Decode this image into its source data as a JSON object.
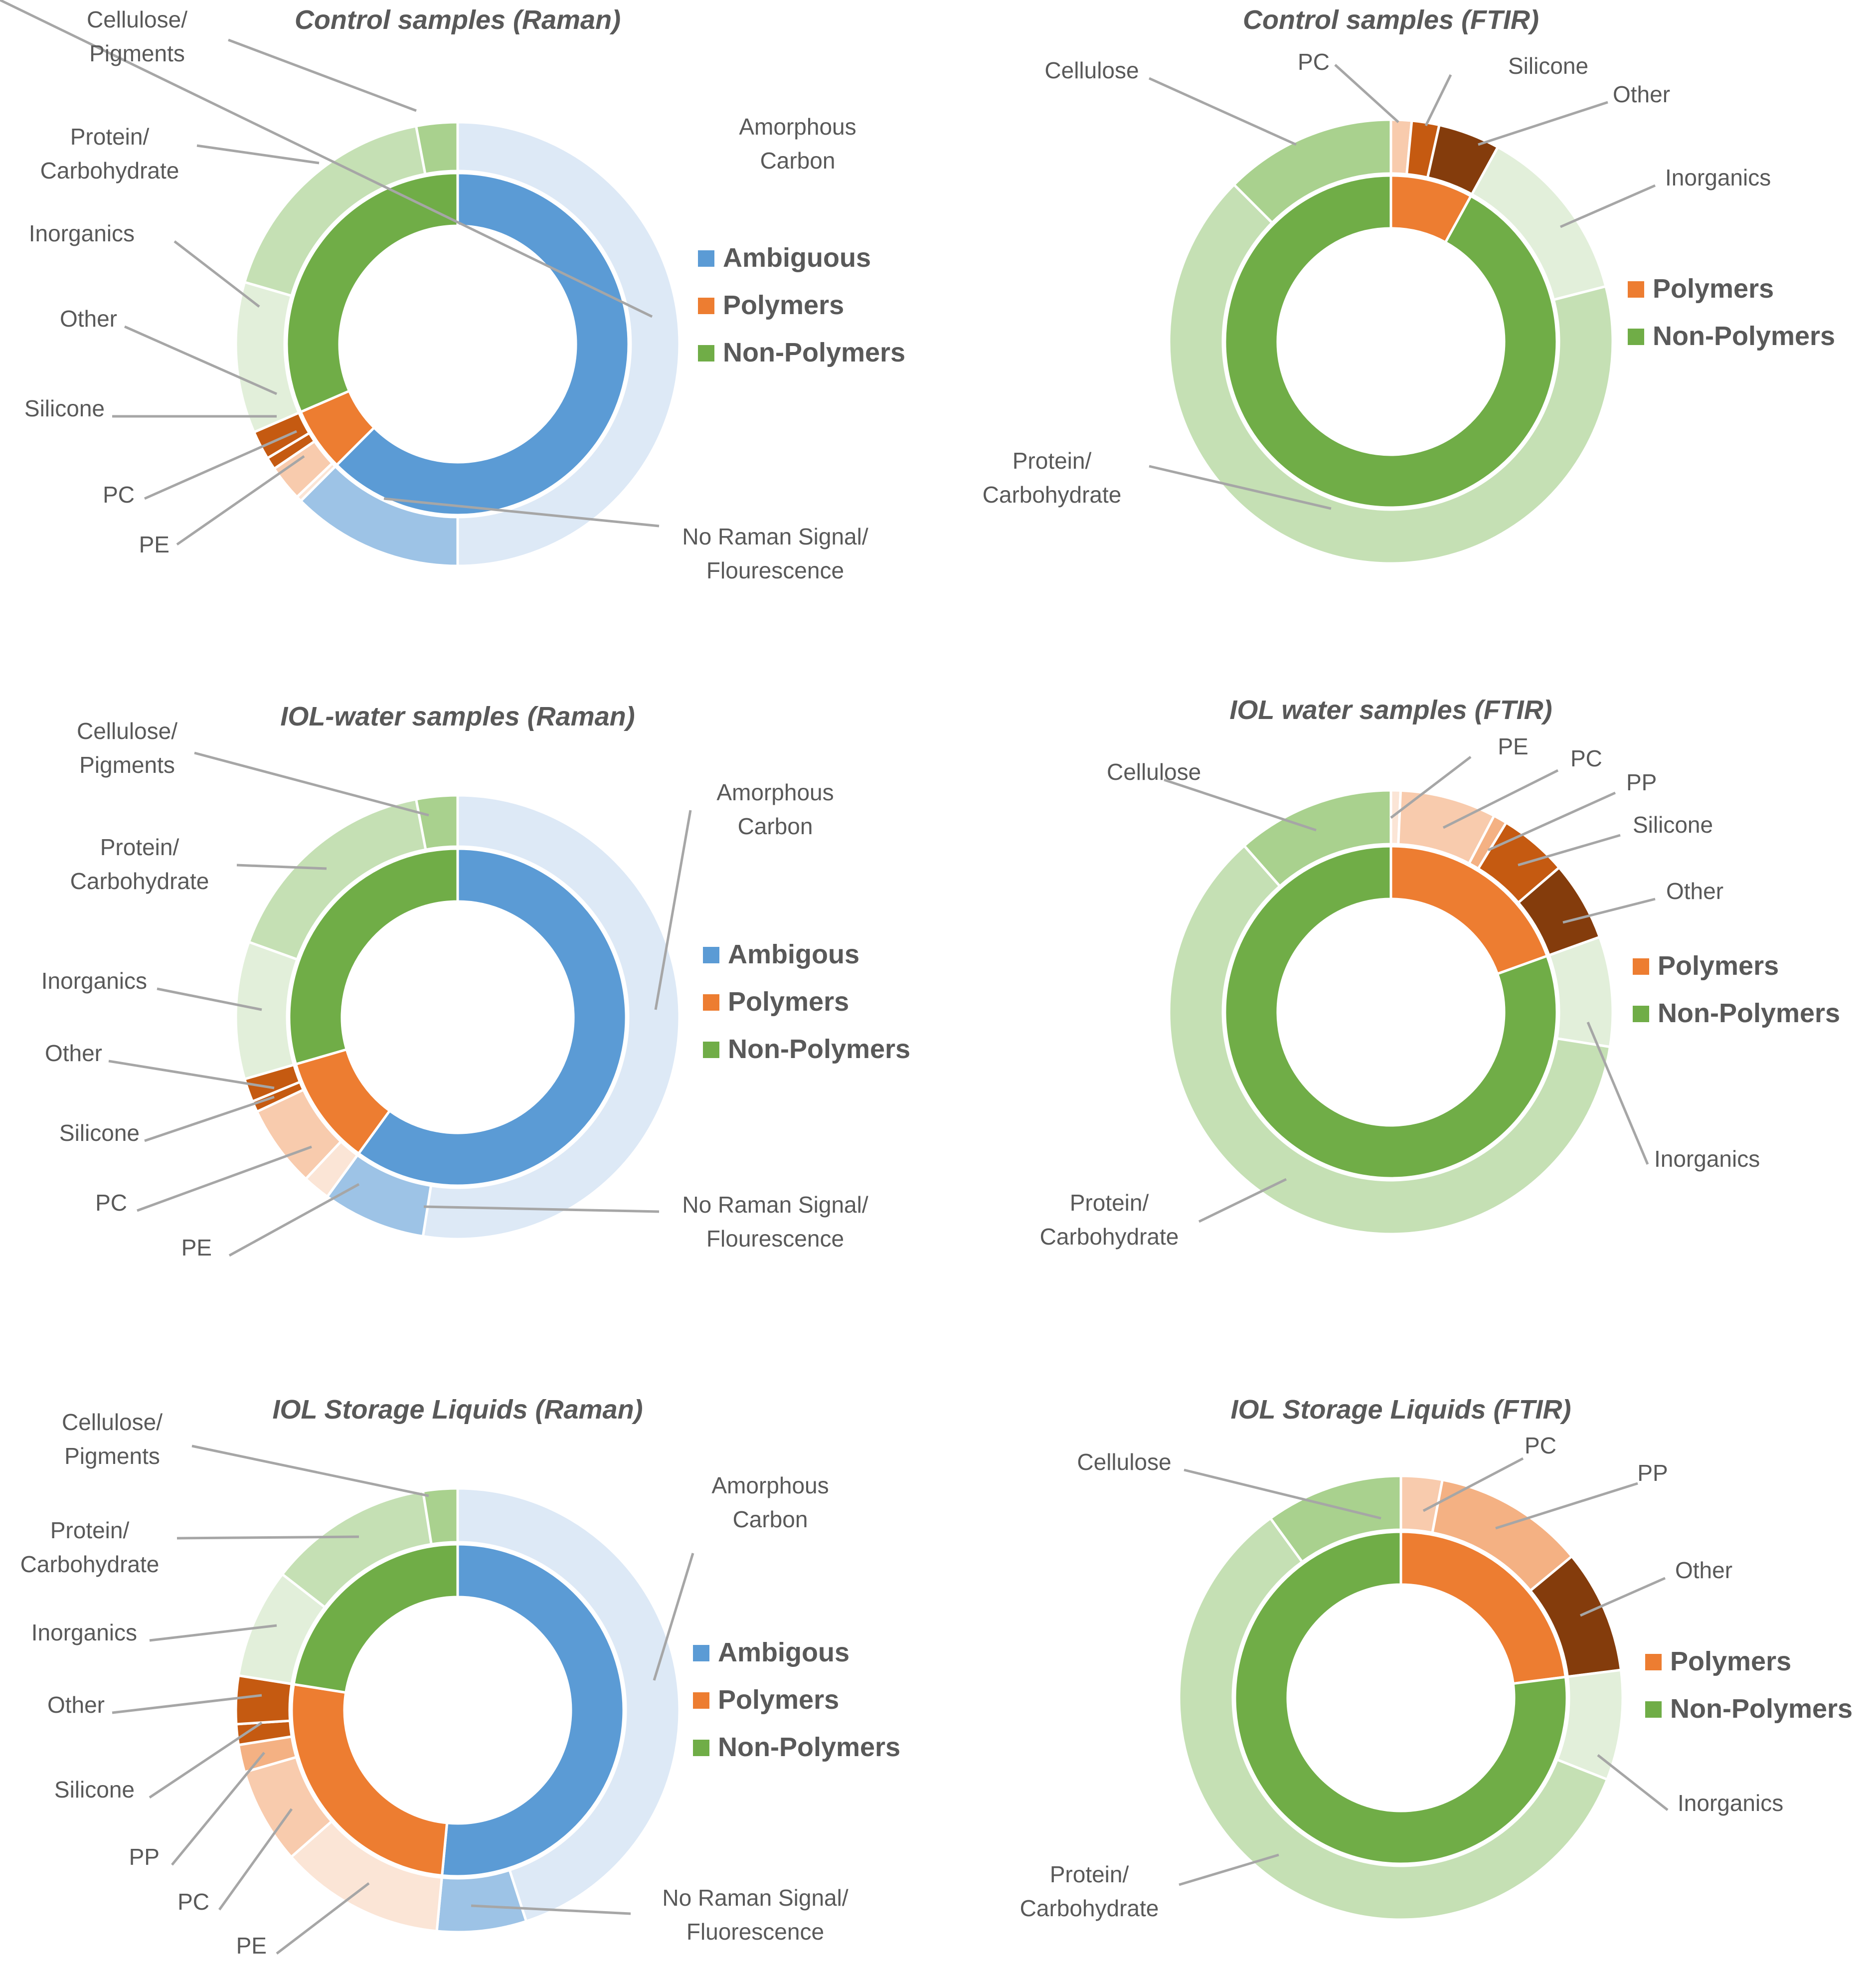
{
  "palette": {
    "ambiguous": "#5b9bd5",
    "polymers": "#ed7d31",
    "non_polymers": "#70ad47",
    "label_text": "#595959",
    "leader_line": "#a6a6a6"
  },
  "chart_data": [
    {
      "type": "donut",
      "title": "Control samples (Raman)",
      "legend": [
        "Ambiguous",
        "Polymers",
        "Non-Polymers"
      ],
      "inner": [
        {
          "name": "Ambiguous",
          "value": 62.5,
          "color": "#5b9bd5"
        },
        {
          "name": "Polymers",
          "value": 6.0,
          "color": "#ed7d31"
        },
        {
          "name": "Non-Polymers",
          "value": 31.5,
          "color": "#70ad47"
        }
      ],
      "outer": [
        {
          "name": "Amorphous Carbon",
          "label": [
            "Amorphous",
            "Carbon"
          ],
          "value": 50.0,
          "color": "#dde9f6"
        },
        {
          "name": "No Raman Signal/ Flourescence",
          "label": [
            "No Raman Signal/",
            "Flourescence"
          ],
          "value": 12.5,
          "color": "#9dc3e6"
        },
        {
          "name": "PE",
          "label": [
            "PE"
          ],
          "value": 0.4,
          "color": "#fbe5d6"
        },
        {
          "name": "PC",
          "label": [
            "PC"
          ],
          "value": 2.6,
          "color": "#f8cbad"
        },
        {
          "name": "Silicone",
          "label": [
            "Silicone"
          ],
          "value": 0.9,
          "color": "#c55a11"
        },
        {
          "name": "Other",
          "label": [
            "Other"
          ],
          "value": 2.1,
          "color": "#c55a11"
        },
        {
          "name": "Inorganics",
          "label": [
            "Inorganics"
          ],
          "value": 11.0,
          "color": "#e2efda"
        },
        {
          "name": "Protein/ Carbohydrate",
          "label": [
            "Protein/",
            "Carbohydrate"
          ],
          "value": 17.5,
          "color": "#c5e0b4"
        },
        {
          "name": "Cellulose/ Pigments",
          "label": [
            "Cellulose/",
            "Pigments"
          ],
          "value": 3.0,
          "color": "#a9d18e"
        }
      ]
    },
    {
      "type": "donut",
      "title": "Control samples (FTIR)",
      "legend": [
        "Polymers",
        "Non-Polymers"
      ],
      "inner": [
        {
          "name": "Polymers",
          "value": 8.0,
          "color": "#ed7d31"
        },
        {
          "name": "Non-Polymers",
          "value": 92.0,
          "color": "#70ad47"
        }
      ],
      "outer": [
        {
          "name": "PC",
          "label": [
            "PC"
          ],
          "value": 1.5,
          "color": "#f8cbad"
        },
        {
          "name": "Silicone",
          "label": [
            "Silicone"
          ],
          "value": 2.0,
          "color": "#c55a11"
        },
        {
          "name": "Other",
          "label": [
            "Other"
          ],
          "value": 4.5,
          "color": "#843c0c"
        },
        {
          "name": "Inorganics",
          "label": [
            "Inorganics"
          ],
          "value": 13.0,
          "color": "#e2efda"
        },
        {
          "name": "Protein/ Carbohydrate",
          "label": [
            "Protein/",
            "Carbohydrate"
          ],
          "value": 66.5,
          "color": "#c5e0b4"
        },
        {
          "name": "Cellulose",
          "label": [
            "Cellulose"
          ],
          "value": 12.5,
          "color": "#a9d18e"
        }
      ]
    },
    {
      "type": "donut",
      "title": "IOL-water samples (Raman)",
      "legend": [
        "Ambigous",
        "Polymers",
        "Non-Polymers"
      ],
      "inner": [
        {
          "name": "Ambigous",
          "value": 60.0,
          "color": "#5b9bd5"
        },
        {
          "name": "Polymers",
          "value": 10.5,
          "color": "#ed7d31"
        },
        {
          "name": "Non-Polymers",
          "value": 29.5,
          "color": "#70ad47"
        }
      ],
      "outer": [
        {
          "name": "Amorphous Carbon",
          "label": [
            "Amorphous",
            "Carbon"
          ],
          "value": 52.5,
          "color": "#dde9f6"
        },
        {
          "name": "No Raman Signal/ Flourescence",
          "label": [
            "No Raman Signal/",
            "Flourescence"
          ],
          "value": 7.5,
          "color": "#9dc3e6"
        },
        {
          "name": "PE",
          "label": [
            "PE"
          ],
          "value": 2.0,
          "color": "#fbe5d6"
        },
        {
          "name": "PC",
          "label": [
            "PC"
          ],
          "value": 6.0,
          "color": "#f8cbad"
        },
        {
          "name": "Silicone",
          "label": [
            "Silicone"
          ],
          "value": 0.8,
          "color": "#c55a11"
        },
        {
          "name": "Other",
          "label": [
            "Other"
          ],
          "value": 1.7,
          "color": "#c55a11"
        },
        {
          "name": "Inorganics",
          "label": [
            "Inorganics"
          ],
          "value": 10.0,
          "color": "#e2efda"
        },
        {
          "name": "Protein/ Carbohydrate",
          "label": [
            "Protein/",
            "Carbohydrate"
          ],
          "value": 16.5,
          "color": "#c5e0b4"
        },
        {
          "name": "Cellulose/ Pigments",
          "label": [
            "Cellulose/",
            "Pigments"
          ],
          "value": 3.0,
          "color": "#a9d18e"
        }
      ]
    },
    {
      "type": "donut",
      "title": "IOL water samples (FTIR)",
      "legend": [
        "Polymers",
        "Non-Polymers"
      ],
      "inner": [
        {
          "name": "Polymers",
          "value": 19.5,
          "color": "#ed7d31"
        },
        {
          "name": "Non-Polymers",
          "value": 80.5,
          "color": "#70ad47"
        }
      ],
      "outer": [
        {
          "name": "PE",
          "label": [
            "PE"
          ],
          "value": 0.7,
          "color": "#fbe5d6"
        },
        {
          "name": "PC",
          "label": [
            "PC"
          ],
          "value": 7.0,
          "color": "#f8cbad"
        },
        {
          "name": "PP",
          "label": [
            "PP"
          ],
          "value": 1.0,
          "color": "#f4b183"
        },
        {
          "name": "Silicone",
          "label": [
            "Silicone"
          ],
          "value": 5.0,
          "color": "#c55a11"
        },
        {
          "name": "Other",
          "label": [
            "Other"
          ],
          "value": 5.8,
          "color": "#843c0c"
        },
        {
          "name": "Inorganics",
          "label": [
            "Inorganics"
          ],
          "value": 8.0,
          "color": "#e2efda"
        },
        {
          "name": "Protein/ Carbohydrate",
          "label": [
            "Protein/",
            "Carbohydrate"
          ],
          "value": 61.0,
          "color": "#c5e0b4"
        },
        {
          "name": "Cellulose",
          "label": [
            "Cellulose"
          ],
          "value": 11.5,
          "color": "#a9d18e"
        }
      ]
    },
    {
      "type": "donut",
      "title": "IOL Storage Liquids (Raman)",
      "legend": [
        "Ambigous",
        "Polymers",
        "Non-Polymers"
      ],
      "inner": [
        {
          "name": "Ambigous",
          "value": 51.5,
          "color": "#5b9bd5"
        },
        {
          "name": "Polymers",
          "value": 26.0,
          "color": "#ed7d31"
        },
        {
          "name": "Non-Polymers",
          "value": 22.5,
          "color": "#70ad47"
        }
      ],
      "outer": [
        {
          "name": "Amorphous Carbon",
          "label": [
            "Amorphous",
            "Carbon"
          ],
          "value": 45.0,
          "color": "#dde9f6"
        },
        {
          "name": "No Raman Signal/ Fluorescence",
          "label": [
            "No Raman Signal/",
            "Fluorescence"
          ],
          "value": 6.5,
          "color": "#9dc3e6"
        },
        {
          "name": "PE",
          "label": [
            "PE"
          ],
          "value": 12.0,
          "color": "#fbe5d6"
        },
        {
          "name": "PC",
          "label": [
            "PC"
          ],
          "value": 7.0,
          "color": "#f8cbad"
        },
        {
          "name": "PP",
          "label": [
            "PP"
          ],
          "value": 2.0,
          "color": "#f4b183"
        },
        {
          "name": "Silicone",
          "label": [
            "Silicone"
          ],
          "value": 1.5,
          "color": "#c55a11"
        },
        {
          "name": "Other",
          "label": [
            "Other"
          ],
          "value": 3.5,
          "color": "#c55a11"
        },
        {
          "name": "Inorganics",
          "label": [
            "Inorganics"
          ],
          "value": 8.0,
          "color": "#e2efda"
        },
        {
          "name": "Protein/ Carbohydrate",
          "label": [
            "Protein/",
            "Carbohydrate"
          ],
          "value": 12.0,
          "color": "#c5e0b4"
        },
        {
          "name": "Cellulose/ Pigments",
          "label": [
            "Cellulose/",
            "Pigments"
          ],
          "value": 2.5,
          "color": "#a9d18e"
        }
      ]
    },
    {
      "type": "donut",
      "title": "IOL Storage Liquids (FTIR)",
      "legend": [
        "Polymers",
        "Non-Polymers"
      ],
      "inner": [
        {
          "name": "Polymers",
          "value": 23.0,
          "color": "#ed7d31"
        },
        {
          "name": "Non-Polymers",
          "value": 77.0,
          "color": "#70ad47"
        }
      ],
      "outer": [
        {
          "name": "PC",
          "label": [
            "PC"
          ],
          "value": 3.0,
          "color": "#f8cbad"
        },
        {
          "name": "PP",
          "label": [
            "PP"
          ],
          "value": 11.0,
          "color": "#f4b183"
        },
        {
          "name": "Other",
          "label": [
            "Other"
          ],
          "value": 9.0,
          "color": "#843c0c"
        },
        {
          "name": "Inorganics",
          "label": [
            "Inorganics"
          ],
          "value": 8.0,
          "color": "#e2efda"
        },
        {
          "name": "Protein/ Carbohydrate",
          "label": [
            "Protein/",
            "Carbohydrate"
          ],
          "value": 59.0,
          "color": "#c5e0b4"
        },
        {
          "name": "Cellulose",
          "label": [
            "Cellulose"
          ],
          "value": 10.0,
          "color": "#a9d18e"
        }
      ]
    }
  ]
}
